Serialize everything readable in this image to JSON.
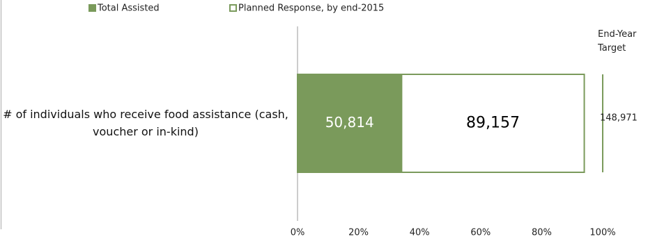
{
  "chart_data": {
    "type": "stacked-bar-horizontal",
    "categories": [
      "# of individuals who receive food assistance (cash, voucher or in-kind)"
    ],
    "series": [
      {
        "name": "Total Assisted",
        "color": "#7a9a5b",
        "values": [
          50814
        ],
        "value_labels": [
          "50,814"
        ]
      },
      {
        "name": "Planned Response, by end-2015",
        "color": "#ffffff",
        "values": [
          89157
        ],
        "value_labels": [
          "89,157"
        ]
      }
    ],
    "xlim": [
      0,
      148971
    ],
    "xticks": [
      {
        "value": 0,
        "label": "0%"
      },
      {
        "value": 29794.2,
        "label": "20%"
      },
      {
        "value": 59588.4,
        "label": "40%"
      },
      {
        "value": 89382.6,
        "label": "60%"
      },
      {
        "value": 119176.8,
        "label": "80%"
      },
      {
        "value": 148971,
        "label": "100%"
      }
    ],
    "target": {
      "label": "End-Year Target",
      "value": 148971,
      "value_label": "148,971"
    },
    "legend": "top"
  }
}
